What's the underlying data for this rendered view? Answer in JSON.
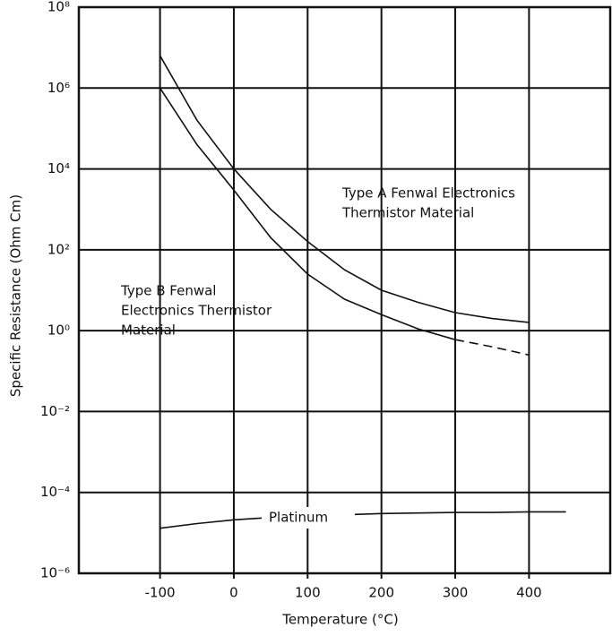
{
  "chart_data": {
    "type": "line",
    "x_label": "Temperature (°C)",
    "y_label": "Specific Resistance (Ohm Cm)",
    "log_y": true,
    "grid": true,
    "x": [
      -100,
      -50,
      0,
      50,
      100,
      150,
      200,
      250,
      300,
      350,
      400,
      450
    ],
    "series": [
      {
        "color": "#111111",
        "line_style": "solid",
        "values": [
          6300000,
          160000,
          10000,
          1000,
          160,
          32,
          10,
          5,
          2.8,
          2,
          1.6,
          null
        ]
      },
      {
        "color": "#111111",
        "line_style": "solid",
        "values": [
          1000000,
          40000,
          3000,
          200,
          25,
          6,
          2.5,
          1.1,
          0.6,
          null,
          null,
          null
        ]
      },
      {
        "color": "#111111",
        "line_style": "dashed",
        "values": [
          null,
          null,
          null,
          null,
          null,
          null,
          null,
          null,
          0.6,
          0.4,
          0.25,
          null
        ]
      },
      {
        "color": "#111111",
        "line_style": "solid",
        "values": [
          1.3e-05,
          1.7e-05,
          2.1e-05,
          2.4e-05,
          2.6e-05,
          2.8e-05,
          3e-05,
          3.1e-05,
          3.2e-05,
          3.2e-05,
          3.3e-05,
          3.3e-05
        ]
      }
    ],
    "annotations": [
      {
        "lines": [
          "Type A Fenwal Electronics",
          "Thermistor Material"
        ]
      },
      {
        "lines": [
          "Type B Fenwal",
          "Electronics Thermistor",
          "Material"
        ]
      },
      {
        "lines": [
          "Platinum"
        ]
      }
    ],
    "xlim": [
      -210,
      510
    ],
    "ylim": [
      1e-06,
      100000000
    ],
    "xticks": [
      -100,
      0,
      100,
      200,
      300,
      400
    ],
    "yticks": [
      {
        "value": 100000000,
        "label": "10⁸"
      },
      {
        "value": 1000000,
        "label": "10⁶"
      },
      {
        "value": 10000,
        "label": "10⁴"
      },
      {
        "value": 100,
        "label": "10²"
      },
      {
        "value": 1,
        "label": "10⁰"
      },
      {
        "value": 0.01,
        "label": "10⁻²"
      },
      {
        "value": 0.0001,
        "label": "10⁻⁴"
      },
      {
        "value": 1e-06,
        "label": "10⁻⁶"
      }
    ]
  }
}
